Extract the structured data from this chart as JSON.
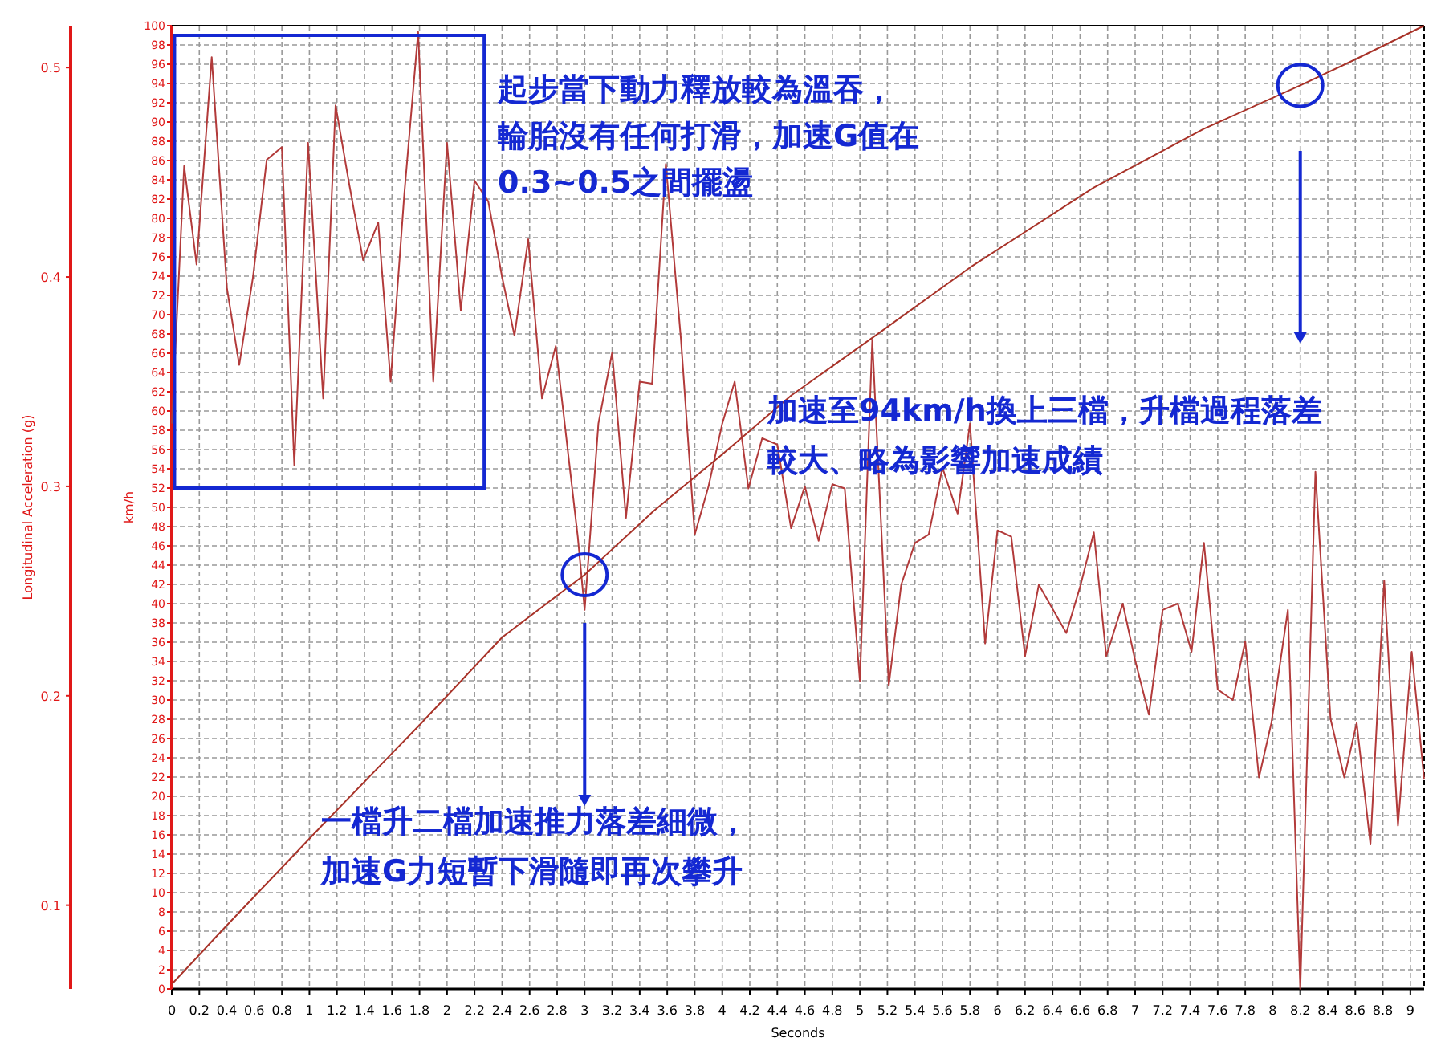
{
  "chart_data": {
    "type": "line",
    "xlabel": "Seconds",
    "ylabel": "Longitudinal Acceleration (g)",
    "y2label": "km/h",
    "xlim": [
      0,
      9.1
    ],
    "xticks": [
      0,
      0.2,
      0.4,
      0.6,
      0.8,
      1,
      1.2,
      1.4,
      1.6,
      1.8,
      2,
      2.2,
      2.4,
      2.6,
      2.8,
      3,
      3.2,
      3.4,
      3.6,
      3.8,
      4,
      4.2,
      4.4,
      4.6,
      4.8,
      5,
      5.2,
      5.4,
      5.6,
      5.8,
      6,
      6.2,
      6.4,
      6.6,
      6.8,
      7,
      7.2,
      7.4,
      7.6,
      7.8,
      8,
      8.2,
      8.4,
      8.6,
      8.8,
      9
    ],
    "ylim": [
      0.06,
      0.52
    ],
    "yticks": [
      0.1,
      0.2,
      0.3,
      0.4,
      0.5
    ],
    "y2lim": [
      0,
      100
    ],
    "y2ticks": [
      0,
      2,
      4,
      6,
      8,
      10,
      12,
      14,
      16,
      18,
      20,
      22,
      24,
      26,
      28,
      30,
      32,
      34,
      36,
      38,
      40,
      42,
      44,
      46,
      48,
      50,
      52,
      54,
      56,
      58,
      60,
      62,
      64,
      66,
      68,
      70,
      72,
      74,
      76,
      78,
      80,
      82,
      84,
      86,
      88,
      90,
      92,
      94,
      96,
      98,
      100
    ],
    "grid": true,
    "series": [
      {
        "color": "#b23a3a",
        "x": [
          0,
          0.09,
          0.18,
          0.29,
          0.4,
          0.49,
          0.59,
          0.69,
          0.8,
          0.89,
          0.99,
          1.1,
          1.19,
          1.29,
          1.39,
          1.5,
          1.59,
          1.69,
          1.79,
          1.9,
          2,
          2.1,
          2.2,
          2.3,
          2.4,
          2.49,
          2.59,
          2.69,
          2.79,
          2.95,
          3,
          3.1,
          3.2,
          3.3,
          3.4,
          3.49,
          3.59,
          3.7,
          3.8,
          3.9,
          4,
          4.09,
          4.19,
          4.29,
          4.4,
          4.5,
          4.6,
          4.7,
          4.8,
          4.89,
          5,
          5.09,
          5.21,
          5.3,
          5.4,
          5.5,
          5.6,
          5.71,
          5.8,
          5.91,
          6,
          6.1,
          6.2,
          6.3,
          6.5,
          6.6,
          6.7,
          6.79,
          6.91,
          7,
          7.1,
          7.2,
          7.31,
          7.41,
          7.5,
          7.6,
          7.71,
          7.8,
          7.9,
          7.99,
          8.11,
          8.2,
          8.31,
          8.42,
          8.52,
          8.61,
          8.71,
          8.81,
          8.91,
          9.01,
          9.1
        ],
        "values": [
          0.33,
          0.453,
          0.406,
          0.505,
          0.395,
          0.358,
          0.4,
          0.456,
          0.462,
          0.31,
          0.464,
          0.342,
          0.482,
          0.444,
          0.408,
          0.426,
          0.35,
          0.44,
          0.517,
          0.35,
          0.464,
          0.384,
          0.446,
          0.436,
          0.4,
          0.372,
          0.418,
          0.342,
          0.367,
          0.276,
          0.241,
          0.33,
          0.364,
          0.285,
          0.35,
          0.349,
          0.454,
          0.37,
          0.277,
          0.3,
          0.33,
          0.35,
          0.299,
          0.323,
          0.32,
          0.28,
          0.3,
          0.274,
          0.301,
          0.299,
          0.207,
          0.37,
          0.205,
          0.253,
          0.273,
          0.277,
          0.309,
          0.287,
          0.33,
          0.225,
          0.279,
          0.276,
          0.219,
          0.253,
          0.23,
          0.252,
          0.278,
          0.219,
          0.244,
          0.217,
          0.191,
          0.241,
          0.244,
          0.221,
          0.273,
          0.203,
          0.198,
          0.226,
          0.161,
          0.187,
          0.241,
          0.06,
          0.307,
          0.189,
          0.161,
          0.187,
          0.129,
          0.255,
          0.138,
          0.221,
          0.16
        ]
      },
      {
        "color": "#a83228",
        "axis": "y2",
        "x": [
          0,
          0.4,
          1.1,
          1.8,
          2.4,
          3,
          3.5,
          4,
          4.5,
          5.1,
          5.8,
          6.7,
          7.5,
          8.2,
          8.6,
          9.1
        ],
        "values": [
          0.5,
          6.6,
          17.1,
          27.4,
          36.5,
          43,
          49.6,
          55.5,
          61.6,
          67.7,
          74.9,
          83.2,
          89.3,
          93.8,
          96.5,
          100
        ]
      }
    ],
    "annotations": [
      "起步當下動力釋放較為溫吞，",
      "輪胎沒有任何打滑，加速G值在",
      "0.3~0.5之間擺盪",
      "加速至94km/h換上三檔，升檔過程落差",
      "較大、略為影響加速成績",
      "一檔升二檔加速推力落差細微，",
      "加速G力短暫下滑隨即再次攀升"
    ]
  }
}
